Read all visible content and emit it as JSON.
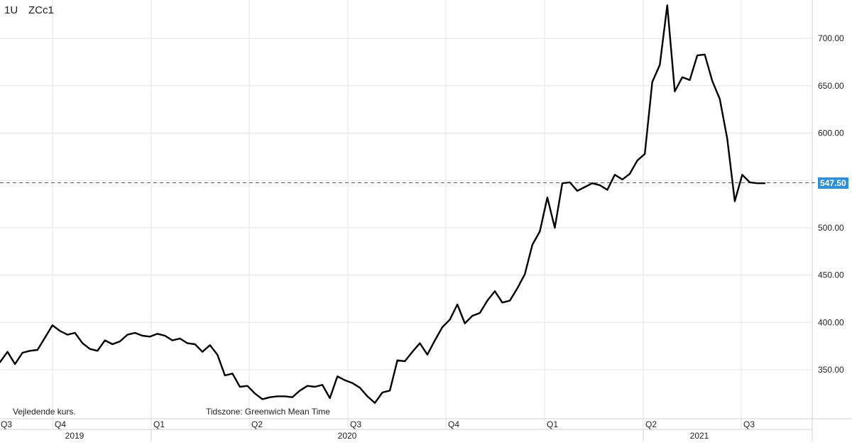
{
  "header": {
    "interval": "1U",
    "symbol": "ZCc1"
  },
  "footnotes": {
    "left": "Vejledende kurs.",
    "right": "Tidszone: Greenwich Mean Time"
  },
  "price_badge": {
    "value": "547.50",
    "color": "#2f8fd8"
  },
  "colors": {
    "line": "#000000",
    "grid": "#e3e3e3",
    "reference_line": "#d62728",
    "badge": "#2f8fd8"
  },
  "chart_data": {
    "type": "line",
    "title": "",
    "xlabel": "",
    "ylabel": "",
    "grid": true,
    "ylim": [
      304,
      740
    ],
    "y_ticks": [
      "350.00",
      "400.00",
      "450.00",
      "500.00",
      "550.00",
      "600.00",
      "650.00",
      "700.00"
    ],
    "quarter_ticks": [
      "Q3",
      "Q4",
      "Q1",
      "Q2",
      "Q3",
      "Q4",
      "Q1",
      "Q2",
      "Q3"
    ],
    "year_labels": [
      "2019",
      "2020",
      "2021"
    ],
    "reference_line": {
      "value": 547.5,
      "label": "547.50",
      "style": "dashed"
    },
    "series": [
      {
        "values": [
          358,
          369,
          356,
          368,
          370,
          371,
          384,
          397,
          391,
          387,
          389,
          378,
          372,
          370,
          381,
          377,
          380,
          387,
          389,
          386,
          385,
          388,
          386,
          381,
          383,
          378,
          377,
          369,
          376,
          366,
          344,
          346,
          332,
          333,
          325,
          319,
          321,
          322,
          322,
          321,
          328,
          333,
          332,
          334,
          320,
          343,
          339,
          336,
          331,
          322,
          315,
          326,
          328,
          360,
          359,
          369,
          378,
          366,
          381,
          395,
          403,
          419,
          399,
          407,
          410,
          423,
          433,
          421,
          423,
          436,
          451,
          482,
          496,
          532,
          500,
          547,
          548,
          539,
          543,
          547,
          545,
          540,
          556,
          551,
          557,
          571,
          578,
          654,
          672,
          735,
          644,
          659,
          656,
          682,
          683,
          655,
          636,
          594,
          528,
          556,
          548,
          547,
          547
        ]
      }
    ]
  }
}
